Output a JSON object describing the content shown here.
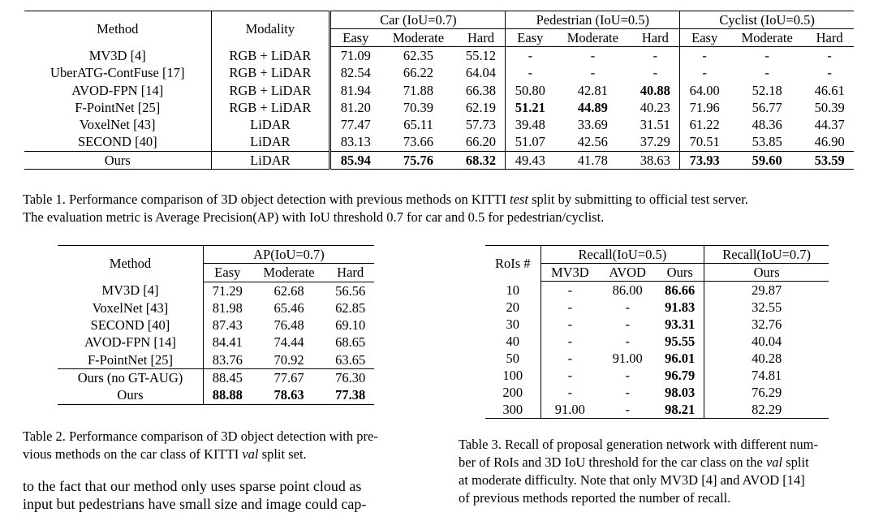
{
  "table1": {
    "header": {
      "method": "Method",
      "modality": "Modality",
      "groups": [
        "Car (IoU=0.7)",
        "Pedestrian (IoU=0.5)",
        "Cyclist (IoU=0.5)"
      ],
      "levels": [
        "Easy",
        "Moderate",
        "Hard",
        "Easy",
        "Moderate",
        "Hard",
        "Easy",
        "Moderate",
        "Hard"
      ]
    },
    "rows": [
      {
        "method": "MV3D [4]",
        "modality": "RGB + LiDAR",
        "values": [
          "71.09",
          "62.35",
          "55.12",
          "-",
          "-",
          "-",
          "-",
          "-",
          "-"
        ]
      },
      {
        "method": "UberATG-ContFuse [17]",
        "modality": "RGB + LiDAR",
        "values": [
          "82.54",
          "66.22",
          "64.04",
          "-",
          "-",
          "-",
          "-",
          "-",
          "-"
        ]
      },
      {
        "method": "AVOD-FPN [14]",
        "modality": "RGB + LiDAR",
        "values": [
          "81.94",
          "71.88",
          "66.38",
          "50.80",
          "42.81",
          "40.88",
          "64.00",
          "52.18",
          "46.61"
        ]
      },
      {
        "method": "F-PointNet [25]",
        "modality": "RGB + LiDAR",
        "values": [
          "81.20",
          "70.39",
          "62.19",
          "51.21",
          "44.89",
          "40.23",
          "71.96",
          "56.77",
          "50.39"
        ]
      },
      {
        "method": "VoxelNet [43]",
        "modality": "LiDAR",
        "values": [
          "77.47",
          "65.11",
          "57.73",
          "39.48",
          "33.69",
          "31.51",
          "61.22",
          "48.36",
          "44.37"
        ]
      },
      {
        "method": "SECOND [40]",
        "modality": "LiDAR",
        "values": [
          "83.13",
          "73.66",
          "66.20",
          "51.07",
          "42.56",
          "37.29",
          "70.51",
          "53.85",
          "46.90"
        ]
      },
      {
        "method": "Ours",
        "modality": "LiDAR",
        "values": [
          "85.94",
          "75.76",
          "68.32",
          "49.43",
          "41.78",
          "38.63",
          "73.93",
          "59.60",
          "53.59"
        ]
      }
    ],
    "caption_line1_a": "Table 1. Performance comparison of 3D object detection with previous methods on KITTI ",
    "caption_line1_em": "test",
    "caption_line1_b": " split by submitting to official test server.",
    "caption_line2": "The evaluation metric is Average Precision(AP) with IoU threshold 0.7 for car and 0.5 for pedestrian/cyclist."
  },
  "table2": {
    "header": {
      "method": "Method",
      "group": "AP(IoU=0.7)",
      "levels": [
        "Easy",
        "Moderate",
        "Hard"
      ]
    },
    "rows": [
      {
        "method": "MV3D [4]",
        "values": [
          "71.29",
          "62.68",
          "56.56"
        ]
      },
      {
        "method": "VoxelNet [43]",
        "values": [
          "81.98",
          "65.46",
          "62.85"
        ]
      },
      {
        "method": "SECOND [40]",
        "values": [
          "87.43",
          "76.48",
          "69.10"
        ]
      },
      {
        "method": "AVOD-FPN [14]",
        "values": [
          "84.41",
          "74.44",
          "68.65"
        ]
      },
      {
        "method": "F-PointNet [25]",
        "values": [
          "83.76",
          "70.92",
          "63.65"
        ]
      },
      {
        "method": "Ours (no GT-AUG)",
        "values": [
          "88.45",
          "77.67",
          "76.30"
        ]
      },
      {
        "method": "Ours",
        "values": [
          "88.88",
          "78.63",
          "77.38"
        ]
      }
    ],
    "caption_line1": "Table 2. Performance comparison of 3D object detection with pre-",
    "caption_line2_a": "vious methods on the car class of KITTI ",
    "caption_line2_em": "val",
    "caption_line2_b": " split set."
  },
  "table3": {
    "header": {
      "rois": "RoIs #",
      "group1": "Recall(IoU=0.5)",
      "group2": "Recall(IoU=0.7)",
      "cols1": [
        "MV3D",
        "AVOD",
        "Ours"
      ],
      "col2": "Ours"
    },
    "rows": [
      {
        "rois": "10",
        "values": [
          "-",
          "86.00",
          "86.66",
          "29.87"
        ]
      },
      {
        "rois": "20",
        "values": [
          "-",
          "-",
          "91.83",
          "32.55"
        ]
      },
      {
        "rois": "30",
        "values": [
          "-",
          "-",
          "93.31",
          "32.76"
        ]
      },
      {
        "rois": "40",
        "values": [
          "-",
          "-",
          "95.55",
          "40.04"
        ]
      },
      {
        "rois": "50",
        "values": [
          "-",
          "91.00",
          "96.01",
          "40.28"
        ]
      },
      {
        "rois": "100",
        "values": [
          "-",
          "-",
          "96.79",
          "74.81"
        ]
      },
      {
        "rois": "200",
        "values": [
          "-",
          "-",
          "98.03",
          "76.29"
        ]
      },
      {
        "rois": "300",
        "values": [
          "91.00",
          "-",
          "98.21",
          "82.29"
        ]
      }
    ],
    "caption_line1": "Table 3. Recall of proposal generation network with different num-",
    "caption_line2_a": "ber of RoIs and 3D IoU threshold for the car class on the ",
    "caption_line2_em": "val",
    "caption_line2_b": " split",
    "caption_line3": "at moderate difficulty.  Note that only MV3D [4] and AVOD [14]",
    "caption_line4": "of previous methods reported the number of recall."
  },
  "body_text": {
    "line1": "to the fact that our method only uses sparse point cloud as",
    "line2": "input but pedestrians have small size and image could cap-"
  }
}
